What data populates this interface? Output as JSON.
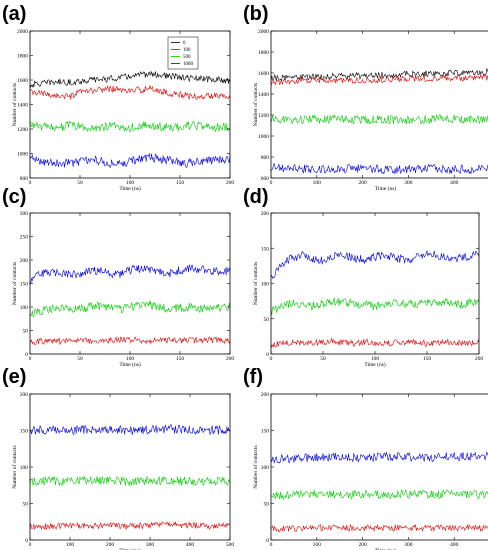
{
  "colors": {
    "0": "#000000",
    "100": "#e00000",
    "500": "#00cc00",
    "1000": "#0000dd"
  },
  "chart_data": [
    {
      "label": "(a)",
      "type": "line",
      "xlabel": "Time (ns)",
      "ylabel": "Number of contacts",
      "xlim": [
        0,
        200
      ],
      "ylim": [
        800,
        2000
      ],
      "xticks": [
        "0",
        "50",
        "100",
        "150",
        "200"
      ],
      "yticks": [
        "800",
        "1000",
        "1200",
        "1400",
        "1600",
        "1800",
        "2000"
      ],
      "xtick_values": [
        0,
        50,
        100,
        150,
        200
      ],
      "ytick_values": [
        800,
        1000,
        1200,
        1400,
        1600,
        1800,
        2000
      ],
      "legend": {
        "placement": "top-right",
        "entries": [
          "0",
          "100",
          "500",
          "1000"
        ]
      },
      "series": [
        {
          "name": "0",
          "color_key": "0",
          "x": [
            0,
            10,
            20,
            30,
            40,
            50,
            60,
            70,
            80,
            90,
            100,
            110,
            120,
            130,
            140,
            150,
            160,
            170,
            180,
            190,
            200
          ],
          "values": [
            1560,
            1570,
            1580,
            1585,
            1580,
            1590,
            1600,
            1605,
            1610,
            1620,
            1630,
            1640,
            1650,
            1640,
            1630,
            1620,
            1615,
            1610,
            1605,
            1600,
            1595
          ]
        },
        {
          "name": "100",
          "color_key": "100",
          "x": [
            0,
            10,
            20,
            30,
            40,
            50,
            60,
            70,
            80,
            90,
            100,
            110,
            120,
            130,
            140,
            150,
            160,
            170,
            180,
            190,
            200
          ],
          "values": [
            1500,
            1490,
            1480,
            1470,
            1460,
            1500,
            1510,
            1520,
            1530,
            1520,
            1510,
            1520,
            1530,
            1510,
            1490,
            1480,
            1470,
            1460,
            1470,
            1480,
            1470
          ]
        },
        {
          "name": "500",
          "color_key": "500",
          "x": [
            0,
            10,
            20,
            30,
            40,
            50,
            60,
            70,
            80,
            90,
            100,
            110,
            120,
            130,
            140,
            150,
            160,
            170,
            180,
            190,
            200
          ],
          "values": [
            1240,
            1220,
            1210,
            1220,
            1230,
            1220,
            1200,
            1215,
            1225,
            1220,
            1210,
            1230,
            1225,
            1215,
            1210,
            1220,
            1230,
            1220,
            1210,
            1215,
            1220
          ]
        },
        {
          "name": "1000",
          "color_key": "1000",
          "x": [
            0,
            10,
            20,
            30,
            40,
            50,
            60,
            70,
            80,
            90,
            100,
            110,
            120,
            130,
            140,
            150,
            160,
            170,
            180,
            190,
            200
          ],
          "values": [
            960,
            940,
            930,
            920,
            925,
            935,
            950,
            940,
            920,
            915,
            935,
            960,
            970,
            955,
            940,
            925,
            920,
            930,
            940,
            950,
            960
          ]
        }
      ]
    },
    {
      "label": "(b)",
      "type": "line",
      "xlabel": "Time (ns)",
      "ylabel": "Number of contacts",
      "xlim": [
        0,
        500
      ],
      "ylim": [
        600,
        2000
      ],
      "xticks": [
        "0",
        "100",
        "200",
        "300",
        "400",
        "500"
      ],
      "yticks": [
        "600",
        "800",
        "1000",
        "1200",
        "1400",
        "1600",
        "1800",
        "2000"
      ],
      "xtick_values": [
        0,
        100,
        200,
        300,
        400,
        500
      ],
      "ytick_values": [
        600,
        800,
        1000,
        1200,
        1400,
        1600,
        1800,
        2000
      ],
      "series": [
        {
          "name": "0",
          "color_key": "0",
          "x": [
            0,
            50,
            100,
            150,
            200,
            250,
            300,
            350,
            400,
            450,
            500
          ],
          "values": [
            1550,
            1560,
            1560,
            1570,
            1575,
            1580,
            1590,
            1595,
            1600,
            1610,
            1620
          ]
        },
        {
          "name": "100",
          "color_key": "100",
          "x": [
            0,
            50,
            100,
            150,
            200,
            250,
            300,
            350,
            400,
            450,
            500
          ],
          "values": [
            1500,
            1520,
            1530,
            1525,
            1530,
            1540,
            1550,
            1545,
            1550,
            1555,
            1560
          ]
        },
        {
          "name": "500",
          "color_key": "500",
          "x": [
            0,
            50,
            100,
            150,
            200,
            250,
            300,
            350,
            400,
            450,
            500
          ],
          "values": [
            1160,
            1150,
            1160,
            1165,
            1155,
            1160,
            1150,
            1160,
            1165,
            1160,
            1170
          ]
        },
        {
          "name": "1000",
          "color_key": "1000",
          "x": [
            0,
            50,
            100,
            150,
            200,
            250,
            300,
            350,
            400,
            450,
            500
          ],
          "values": [
            700,
            690,
            680,
            685,
            690,
            680,
            685,
            690,
            680,
            685,
            690
          ]
        }
      ]
    },
    {
      "label": "(c)",
      "type": "line",
      "xlabel": "Time (ns)",
      "ylabel": "Number of contacts",
      "xlim": [
        0,
        200
      ],
      "ylim": [
        0,
        300
      ],
      "xticks": [
        "0",
        "50",
        "100",
        "150",
        "200"
      ],
      "yticks": [
        "0",
        "50",
        "100",
        "150",
        "200",
        "250",
        "300"
      ],
      "xtick_values": [
        0,
        50,
        100,
        150,
        200
      ],
      "ytick_values": [
        0,
        50,
        100,
        150,
        200,
        250,
        300
      ],
      "series": [
        {
          "name": "100",
          "color_key": "100",
          "x": [
            0,
            10,
            20,
            30,
            40,
            50,
            60,
            70,
            80,
            90,
            100,
            110,
            120,
            130,
            140,
            150,
            160,
            170,
            180,
            190,
            200
          ],
          "values": [
            25,
            27,
            28,
            27,
            28,
            29,
            28,
            28,
            29,
            30,
            30,
            29,
            28,
            29,
            30,
            29,
            28,
            29,
            30,
            29,
            28
          ]
        },
        {
          "name": "500",
          "color_key": "500",
          "x": [
            0,
            10,
            20,
            30,
            40,
            50,
            60,
            70,
            80,
            90,
            100,
            110,
            120,
            130,
            140,
            150,
            160,
            170,
            180,
            190,
            200
          ],
          "values": [
            85,
            92,
            95,
            98,
            96,
            95,
            100,
            102,
            98,
            95,
            100,
            102,
            105,
            100,
            96,
            98,
            100,
            97,
            95,
            98,
            100
          ]
        },
        {
          "name": "1000",
          "color_key": "1000",
          "x": [
            0,
            10,
            20,
            30,
            40,
            50,
            60,
            70,
            80,
            90,
            100,
            110,
            120,
            130,
            140,
            150,
            160,
            170,
            180,
            190,
            200
          ],
          "values": [
            155,
            170,
            175,
            172,
            170,
            168,
            175,
            178,
            172,
            170,
            178,
            182,
            180,
            175,
            172,
            178,
            182,
            180,
            176,
            175,
            178
          ]
        }
      ]
    },
    {
      "label": "(d)",
      "type": "line",
      "xlabel": "Time (ns)",
      "ylabel": "Number of contacts",
      "xlim": [
        0,
        200
      ],
      "ylim": [
        0,
        200
      ],
      "xticks": [
        "0",
        "50",
        "100",
        "150",
        "200"
      ],
      "yticks": [
        "0",
        "50",
        "100",
        "150",
        "200"
      ],
      "xtick_values": [
        0,
        50,
        100,
        150,
        200
      ],
      "ytick_values": [
        0,
        50,
        100,
        150,
        200
      ],
      "series": [
        {
          "name": "100",
          "color_key": "100",
          "x": [
            0,
            10,
            20,
            30,
            40,
            50,
            60,
            70,
            80,
            90,
            100,
            110,
            120,
            130,
            140,
            150,
            160,
            170,
            180,
            190,
            200
          ],
          "values": [
            12,
            15,
            17,
            16,
            15,
            17,
            18,
            16,
            15,
            17,
            16,
            15,
            16,
            17,
            16,
            15,
            16,
            17,
            16,
            15,
            16
          ]
        },
        {
          "name": "500",
          "color_key": "500",
          "x": [
            0,
            10,
            20,
            30,
            40,
            50,
            60,
            70,
            80,
            90,
            100,
            110,
            120,
            130,
            140,
            150,
            160,
            170,
            180,
            190,
            200
          ],
          "values": [
            60,
            68,
            72,
            70,
            68,
            72,
            75,
            73,
            72,
            70,
            68,
            72,
            74,
            72,
            70,
            72,
            74,
            73,
            70,
            72,
            74
          ]
        },
        {
          "name": "1000",
          "color_key": "1000",
          "x": [
            0,
            10,
            20,
            30,
            40,
            50,
            60,
            70,
            80,
            90,
            100,
            110,
            120,
            130,
            140,
            150,
            160,
            170,
            180,
            190,
            200
          ],
          "values": [
            105,
            128,
            136,
            140,
            135,
            132,
            138,
            142,
            136,
            134,
            138,
            140,
            136,
            133,
            137,
            142,
            140,
            138,
            135,
            139,
            141
          ]
        }
      ]
    },
    {
      "label": "(e)",
      "type": "line",
      "xlabel": "Time (ns)",
      "ylabel": "Number of contacts",
      "xlim": [
        0,
        500
      ],
      "ylim": [
        0,
        200
      ],
      "xticks": [
        "0",
        "100",
        "200",
        "300",
        "400",
        "500"
      ],
      "yticks": [
        "0",
        "50",
        "100",
        "150",
        "200"
      ],
      "xtick_values": [
        0,
        100,
        200,
        300,
        400,
        500
      ],
      "ytick_values": [
        0,
        50,
        100,
        150,
        200
      ],
      "series": [
        {
          "name": "100",
          "color_key": "100",
          "x": [
            0,
            50,
            100,
            150,
            200,
            250,
            300,
            350,
            400,
            450,
            500
          ],
          "values": [
            18,
            19,
            20,
            19,
            20,
            19,
            20,
            21,
            20,
            19,
            20
          ]
        },
        {
          "name": "500",
          "color_key": "500",
          "x": [
            0,
            50,
            100,
            150,
            200,
            250,
            300,
            350,
            400,
            450,
            500
          ],
          "values": [
            80,
            81,
            80,
            82,
            81,
            80,
            81,
            82,
            80,
            81,
            80
          ]
        },
        {
          "name": "1000",
          "color_key": "1000",
          "x": [
            0,
            50,
            100,
            150,
            200,
            250,
            300,
            350,
            400,
            450,
            500
          ],
          "values": [
            150,
            151,
            150,
            152,
            151,
            150,
            151,
            152,
            151,
            150,
            151
          ]
        }
      ]
    },
    {
      "label": "(f)",
      "type": "line",
      "xlabel": "Time (ns)",
      "ylabel": "Number of contacts",
      "xlim": [
        0,
        500
      ],
      "ylim": [
        0,
        200
      ],
      "xticks": [
        "0",
        "100",
        "200",
        "300",
        "400",
        "500"
      ],
      "yticks": [
        "0",
        "50",
        "100",
        "150",
        "200"
      ],
      "xtick_values": [
        0,
        100,
        200,
        300,
        400,
        500
      ],
      "ytick_values": [
        0,
        50,
        100,
        150,
        200
      ],
      "series": [
        {
          "name": "100",
          "color_key": "100",
          "x": [
            0,
            50,
            100,
            150,
            200,
            250,
            300,
            350,
            400,
            450,
            500
          ],
          "values": [
            15,
            16,
            17,
            16,
            17,
            16,
            17,
            16,
            17,
            16,
            17
          ]
        },
        {
          "name": "500",
          "color_key": "500",
          "x": [
            0,
            50,
            100,
            150,
            200,
            250,
            300,
            350,
            400,
            450,
            500
          ],
          "values": [
            60,
            62,
            63,
            62,
            63,
            62,
            63,
            62,
            63,
            62,
            63
          ]
        },
        {
          "name": "1000",
          "color_key": "1000",
          "x": [
            0,
            50,
            100,
            150,
            200,
            250,
            300,
            350,
            400,
            450,
            500
          ],
          "values": [
            110,
            112,
            113,
            114,
            112,
            115,
            114,
            113,
            115,
            114,
            116
          ]
        }
      ]
    }
  ]
}
